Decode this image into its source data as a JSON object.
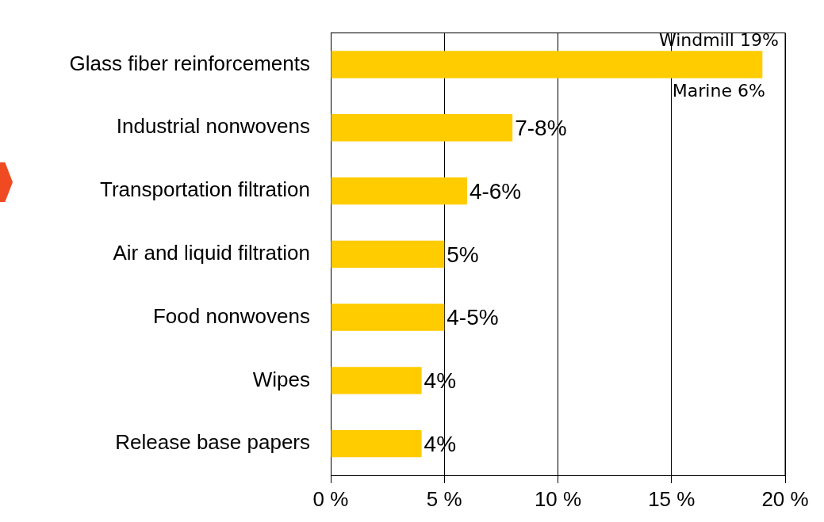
{
  "chart_data": {
    "type": "bar",
    "orientation": "horizontal",
    "categories": [
      "Glass fiber reinforcements",
      "Industrial nonwovens",
      "Transportation filtration",
      "Air and liquid filtration",
      "Food nonwovens",
      "Wipes",
      "Release base papers"
    ],
    "values": [
      19,
      8,
      6,
      5,
      5,
      4,
      4
    ],
    "value_labels": [
      null,
      null,
      null,
      "5%",
      null,
      "4%",
      "4%"
    ],
    "color": "#ffcc00",
    "xlim": [
      0,
      20
    ],
    "xticks": [
      {
        "value": 0,
        "label": "0 %"
      },
      {
        "value": 5,
        "label": "5 %"
      },
      {
        "value": 10,
        "label": "10 %"
      },
      {
        "value": 15,
        "label": "15 %"
      },
      {
        "value": 20,
        "label": "20 %"
      }
    ],
    "grid": "x",
    "legend": false,
    "annotations": [
      {
        "text": "Windmill 19%",
        "x": 19,
        "y": "Glass fiber reinforcements"
      },
      {
        "text": "Marine 6%",
        "x": 19,
        "y": "Glass fiber reinforcements"
      },
      {
        "text": "7-8%",
        "x": 8,
        "y": "Industrial nonwovens"
      },
      {
        "text": "4-6%",
        "x": 6,
        "y": "Transportation filtration"
      },
      {
        "text": "4-5%",
        "x": 5,
        "y": "Food nonwovens"
      }
    ]
  }
}
